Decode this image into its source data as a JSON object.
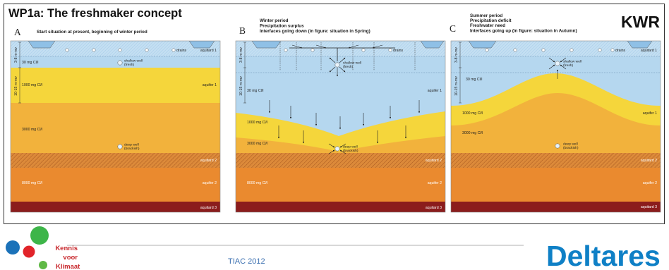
{
  "slide": {
    "title": "WP1a: The freshmaker concept",
    "org": "KWR"
  },
  "panels": [
    {
      "letter": "A",
      "caption": [
        "Start situation at present, beginning of winter period"
      ],
      "depth_upper": "3-8 m-mv",
      "depth_lower": "10-15 m-mv",
      "drains": "drains",
      "aquitard_1": "aquitard 1",
      "shallow_well": [
        "shallow well",
        "(fresh)"
      ],
      "fresh": "30 mg Cl/l",
      "aquifer_1": "aquifer 1",
      "chloride_1000": "1000 mg Cl/l",
      "chloride_3000": "3000 mg Cl/l",
      "deep_well": [
        "deep well",
        "(brackish)"
      ],
      "aquitard_2": "aquitard 2",
      "chloride_8000": "8000 mg Cl/l",
      "aquifer_2": "aquifer 2",
      "aquitard_3": "aquitard 3"
    },
    {
      "letter": "B",
      "caption": [
        "Winter period",
        "Precipitation surplus",
        "Interfaces going down (in figure: situation in Spring)"
      ],
      "depth_upper": "3-8 m-mv",
      "depth_lower": "10-15 m-mv",
      "drains": "drains",
      "shallow_well": [
        "shallow well",
        "(fresh)"
      ],
      "fresh": "30 mg Cl/l",
      "aquifer_1": "aquifer 1",
      "chloride_1000": "1000 mg Cl/l",
      "chloride_3000": "3000 mg Cl/l",
      "deep_well": [
        "deep well",
        "(brackish)"
      ],
      "aquitard_2": "aquitard 2",
      "chloride_8000": "8000 mg Cl/l",
      "aquifer_2": "aquifer 2",
      "aquitard_3": "aquitard 3"
    },
    {
      "letter": "C",
      "caption": [
        "Summer period",
        "Precipitation deficit",
        "Freshwater need",
        "Interfaces going up (in figure: situation in Autumn)"
      ],
      "depth_upper": "3-8 m-mv",
      "depth_lower": "10-15 m-mv",
      "drains": "drains",
      "aquitard_1": "aquitard 1",
      "shallow_well": [
        "shallow well",
        "(fresh)"
      ],
      "fresh": "30 mg Cl/l",
      "aquifer_1": "aquifer 1",
      "chloride_1000": "1000 mg Cl/l",
      "chloride_3000": "3000 mg Cl/l",
      "deep_well": [
        "deep well",
        "(brackish)"
      ],
      "aquitard_2": "aquitard 2",
      "aquifer_2": "aquifer 2",
      "aquitard_3": "aquitard 3"
    }
  ],
  "footer": {
    "partner": [
      "Kennis",
      "voor",
      "Klimaat"
    ],
    "event": "TIAC 2012",
    "brand": "Deltares"
  },
  "icons": {
    "partner_logo": "colored-dots-logo-icon",
    "well": "well-circle-icon",
    "drain": "drain-circle-icon",
    "flow": "flow-arrow-icon"
  },
  "colors": {
    "fresh": "#b5d7ef",
    "aquitard_1": "#c4dff2",
    "chloride_1000": "#f5d63b",
    "chloride_3000": "#f2b23c",
    "aquitard_2": "#dc8a3a",
    "aquifer_2": "#ea8a2f",
    "aquitard_3": "#8b1c1c",
    "brand_blue": "#0f80c6",
    "event_blue": "#3a6fb0",
    "partner_red": "#c8282d"
  }
}
